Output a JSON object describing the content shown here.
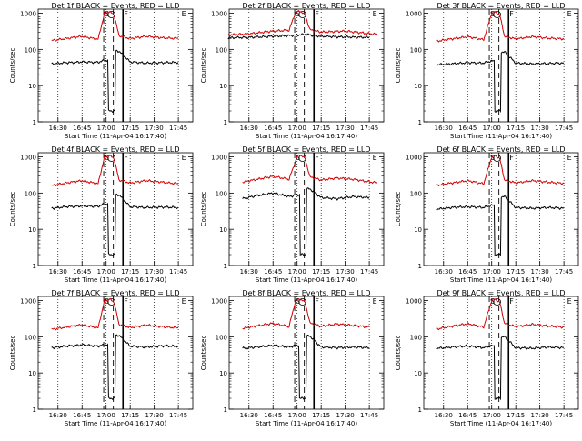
{
  "colors": {
    "events": "#000000",
    "lld": "#d00000",
    "axis": "#000000",
    "background": "#ffffff"
  },
  "chart_data": [
    {
      "type": "line",
      "title": "Det 1f BLACK = Events, RED = LLD",
      "ylabel": "Counts/sec",
      "xlabel": "Start Time (11-Apr-04 16:17:40)",
      "x_ticks": [
        "16:30",
        "16:45",
        "17:00",
        "17:15",
        "17:30",
        "17:45"
      ],
      "y_ticks": [
        "1",
        "10",
        "100",
        "1000"
      ],
      "y_scale": "log",
      "ylim": [
        1,
        1300
      ],
      "xlim": [
        "16:17:40",
        "17:54:00"
      ],
      "markers": [
        "S",
        "F",
        "E"
      ],
      "series": [
        {
          "key": "events",
          "x": [
            "16:26",
            "16:35",
            "16:45",
            "16:55",
            "16:59",
            "17:04",
            "17:08",
            "17:15",
            "17:25",
            "17:35",
            "17:45"
          ],
          "y": [
            40,
            43,
            45,
            44,
            50,
            0,
            90,
            45,
            42,
            43,
            44
          ]
        },
        {
          "key": "lld",
          "x": [
            "16:26",
            "16:35",
            "16:45",
            "16:55",
            "16:59",
            "17:02",
            "17:05",
            "17:08",
            "17:15",
            "17:25",
            "17:35",
            "17:45"
          ],
          "y": [
            175,
            200,
            230,
            190,
            1000,
            1100,
            900,
            240,
            200,
            230,
            210,
            200
          ]
        }
      ]
    },
    {
      "type": "line",
      "title": "Det 2f BLACK = Events, RED = LLD",
      "ylabel": "Counts/sec",
      "xlabel": "Start Time (11-Apr-04 16:17:40)",
      "x_ticks": [
        "16:30",
        "16:45",
        "17:00",
        "17:15",
        "17:30",
        "17:45"
      ],
      "y_ticks": [
        "1",
        "10",
        "100",
        "1000"
      ],
      "y_scale": "log",
      "ylim": [
        1,
        1300
      ],
      "xlim": [
        "16:17:40",
        "17:54:00"
      ],
      "markers": [
        "S",
        "F",
        "E"
      ],
      "series": [
        {
          "key": "events",
          "x": [
            "16:17",
            "16:30",
            "16:45",
            "16:55",
            "17:00",
            "17:05",
            "17:15",
            "17:30",
            "17:45"
          ],
          "y": [
            210,
            215,
            230,
            240,
            250,
            260,
            230,
            220,
            215
          ]
        },
        {
          "key": "lld",
          "x": [
            "16:17",
            "16:30",
            "16:45",
            "16:55",
            "16:59",
            "17:02",
            "17:05",
            "17:08",
            "17:15",
            "17:30",
            "17:50"
          ],
          "y": [
            250,
            270,
            320,
            340,
            1050,
            1150,
            900,
            350,
            300,
            320,
            260
          ]
        }
      ]
    },
    {
      "type": "line",
      "title": "Det 3f BLACK = Events, RED = LLD",
      "ylabel": "Counts/sec",
      "xlabel": "Start Time (11-Apr-04 16:17:40)",
      "x_ticks": [
        "16:30",
        "16:45",
        "17:00",
        "17:15",
        "17:30",
        "17:45"
      ],
      "y_ticks": [
        "1",
        "10",
        "100",
        "1000"
      ],
      "y_scale": "log",
      "ylim": [
        1,
        1300
      ],
      "xlim": [
        "16:17:40",
        "17:54:00"
      ],
      "markers": [
        "S",
        "F",
        "E"
      ],
      "series": [
        {
          "key": "events",
          "x": [
            "16:26",
            "16:35",
            "16:45",
            "16:55",
            "17:00",
            "17:04",
            "17:08",
            "17:15",
            "17:25",
            "17:35",
            "17:45"
          ],
          "y": [
            38,
            40,
            43,
            42,
            48,
            0,
            85,
            42,
            40,
            41,
            42
          ]
        },
        {
          "key": "lld",
          "x": [
            "16:26",
            "16:35",
            "16:45",
            "16:55",
            "17:00",
            "17:02",
            "17:05",
            "17:08",
            "17:15",
            "17:25",
            "17:35",
            "17:45"
          ],
          "y": [
            170,
            195,
            225,
            185,
            1000,
            1100,
            900,
            230,
            195,
            225,
            205,
            195
          ]
        }
      ]
    },
    {
      "type": "line",
      "title": "Det 4f BLACK = Events, RED = LLD",
      "ylabel": "Counts/sec",
      "xlabel": "Start Time (11-Apr-04 16:17:40)",
      "x_ticks": [
        "16:30",
        "16:45",
        "17:00",
        "17:15",
        "17:30",
        "17:45"
      ],
      "y_ticks": [
        "1",
        "10",
        "100",
        "1000"
      ],
      "y_scale": "log",
      "ylim": [
        1,
        1300
      ],
      "xlim": [
        "16:17:40",
        "17:54:00"
      ],
      "markers": [
        "S",
        "F",
        "E"
      ],
      "series": [
        {
          "key": "events",
          "x": [
            "16:26",
            "16:35",
            "16:45",
            "16:55",
            "16:59",
            "17:04",
            "17:08",
            "17:15",
            "17:25",
            "17:35",
            "17:45"
          ],
          "y": [
            38,
            42,
            44,
            43,
            50,
            0,
            90,
            42,
            40,
            41,
            40
          ]
        },
        {
          "key": "lld",
          "x": [
            "16:26",
            "16:35",
            "16:45",
            "16:55",
            "16:59",
            "17:02",
            "17:05",
            "17:08",
            "17:15",
            "17:25",
            "17:35",
            "17:45"
          ],
          "y": [
            160,
            190,
            220,
            180,
            1000,
            1100,
            900,
            230,
            190,
            220,
            200,
            180
          ]
        }
      ]
    },
    {
      "type": "line",
      "title": "Det 5f BLACK = Events, RED = LLD",
      "ylabel": "Counts/sec",
      "xlabel": "Start Time (11-Apr-04 16:17:40)",
      "x_ticks": [
        "16:30",
        "16:45",
        "17:00",
        "17:15",
        "17:30",
        "17:45"
      ],
      "y_ticks": [
        "1",
        "10",
        "100",
        "1000"
      ],
      "y_scale": "log",
      "ylim": [
        1,
        1300
      ],
      "xlim": [
        "16:17:40",
        "17:54:00"
      ],
      "markers": [
        "S",
        "F",
        "E"
      ],
      "series": [
        {
          "key": "events",
          "x": [
            "16:26",
            "16:35",
            "16:45",
            "16:55",
            "17:00",
            "17:04",
            "17:08",
            "17:15",
            "17:25",
            "17:35",
            "17:45"
          ],
          "y": [
            70,
            85,
            100,
            80,
            90,
            0,
            130,
            75,
            70,
            80,
            75
          ]
        },
        {
          "key": "lld",
          "x": [
            "16:26",
            "16:35",
            "16:45",
            "16:55",
            "17:00",
            "17:02",
            "17:05",
            "17:08",
            "17:15",
            "17:25",
            "17:35",
            "17:50"
          ],
          "y": [
            200,
            240,
            290,
            240,
            1000,
            1150,
            900,
            280,
            230,
            260,
            240,
            190
          ]
        }
      ]
    },
    {
      "type": "line",
      "title": "Det 6f BLACK = Events, RED = LLD",
      "ylabel": "Counts/sec",
      "xlabel": "Start Time (11-Apr-04 16:17:40)",
      "x_ticks": [
        "16:30",
        "16:45",
        "17:00",
        "17:15",
        "17:30",
        "17:45"
      ],
      "y_ticks": [
        "1",
        "10",
        "100",
        "1000"
      ],
      "y_scale": "log",
      "ylim": [
        1,
        1300
      ],
      "xlim": [
        "16:17:40",
        "17:54:00"
      ],
      "markers": [
        "S",
        "F",
        "E"
      ],
      "series": [
        {
          "key": "events",
          "x": [
            "16:26",
            "16:35",
            "16:45",
            "16:55",
            "17:00",
            "17:04",
            "17:08",
            "17:15",
            "17:25",
            "17:35",
            "17:45"
          ],
          "y": [
            36,
            40,
            42,
            40,
            46,
            0,
            80,
            40,
            38,
            40,
            38
          ]
        },
        {
          "key": "lld",
          "x": [
            "16:26",
            "16:35",
            "16:45",
            "16:55",
            "17:00",
            "17:02",
            "17:05",
            "17:08",
            "17:15",
            "17:25",
            "17:35",
            "17:45"
          ],
          "y": [
            165,
            190,
            220,
            180,
            1000,
            1100,
            900,
            230,
            190,
            220,
            200,
            185
          ]
        }
      ]
    },
    {
      "type": "line",
      "title": "Det 7f BLACK = Events, RED = LLD",
      "ylabel": "Counts/sec",
      "xlabel": "Start Time (11-Apr-04 16:17:40)",
      "x_ticks": [
        "16:30",
        "16:45",
        "17:00",
        "17:15",
        "17:30",
        "17:45"
      ],
      "y_ticks": [
        "1",
        "10",
        "100",
        "1000"
      ],
      "y_scale": "log",
      "ylim": [
        1,
        1300
      ],
      "xlim": [
        "16:17:40",
        "17:54:00"
      ],
      "markers": [
        "S",
        "F",
        "E"
      ],
      "series": [
        {
          "key": "events",
          "x": [
            "16:26",
            "16:35",
            "16:45",
            "16:55",
            "16:59",
            "17:04",
            "17:08",
            "17:15",
            "17:25",
            "17:35",
            "17:45"
          ],
          "y": [
            50,
            55,
            60,
            55,
            60,
            0,
            110,
            55,
            52,
            56,
            55
          ]
        },
        {
          "key": "lld",
          "x": [
            "16:26",
            "16:35",
            "16:45",
            "16:55",
            "16:59",
            "17:02",
            "17:05",
            "17:08",
            "17:15",
            "17:25",
            "17:35",
            "17:45"
          ],
          "y": [
            160,
            185,
            215,
            175,
            1000,
            1100,
            900,
            220,
            180,
            210,
            190,
            175
          ]
        }
      ]
    },
    {
      "type": "line",
      "title": "Det 8f BLACK = Events, RED = LLD",
      "ylabel": "Counts/sec",
      "xlabel": "Start Time (11-Apr-04 16:17:40)",
      "x_ticks": [
        "16:30",
        "16:45",
        "17:00",
        "17:15",
        "17:30",
        "17:45"
      ],
      "y_ticks": [
        "1",
        "10",
        "100",
        "1000"
      ],
      "y_scale": "log",
      "ylim": [
        1,
        1300
      ],
      "xlim": [
        "16:17:40",
        "17:54:00"
      ],
      "markers": [
        "S",
        "F",
        "E"
      ],
      "series": [
        {
          "key": "events",
          "x": [
            "16:26",
            "16:35",
            "16:45",
            "16:55",
            "16:59",
            "17:04",
            "17:08",
            "17:15",
            "17:25",
            "17:35",
            "17:45"
          ],
          "y": [
            48,
            52,
            58,
            52,
            58,
            0,
            105,
            52,
            50,
            52,
            50
          ]
        },
        {
          "key": "lld",
          "x": [
            "16:26",
            "16:35",
            "16:45",
            "16:55",
            "16:59",
            "17:02",
            "17:05",
            "17:08",
            "17:15",
            "17:25",
            "17:35",
            "17:45"
          ],
          "y": [
            170,
            200,
            235,
            190,
            1000,
            1100,
            900,
            240,
            195,
            225,
            205,
            185
          ]
        }
      ]
    },
    {
      "type": "line",
      "title": "Det 9f BLACK = Events, RED = LLD",
      "ylabel": "Counts/sec",
      "xlabel": "Start Time (11-Apr-04 16:17:40)",
      "x_ticks": [
        "16:30",
        "16:45",
        "17:00",
        "17:15",
        "17:30",
        "17:45"
      ],
      "y_ticks": [
        "1",
        "10",
        "100",
        "1000"
      ],
      "y_scale": "log",
      "ylim": [
        1,
        1300
      ],
      "xlim": [
        "16:17:40",
        "17:54:00"
      ],
      "markers": [
        "S",
        "F",
        "E"
      ],
      "series": [
        {
          "key": "events",
          "x": [
            "16:26",
            "16:35",
            "16:45",
            "16:55",
            "17:00",
            "17:04",
            "17:08",
            "17:15",
            "17:25",
            "17:35",
            "17:45"
          ],
          "y": [
            48,
            52,
            56,
            50,
            56,
            0,
            100,
            50,
            48,
            52,
            50
          ]
        },
        {
          "key": "lld",
          "x": [
            "16:26",
            "16:35",
            "16:45",
            "16:55",
            "17:00",
            "17:02",
            "17:05",
            "17:08",
            "17:15",
            "17:25",
            "17:35",
            "17:45"
          ],
          "y": [
            165,
            195,
            230,
            185,
            1000,
            1100,
            900,
            235,
            190,
            220,
            200,
            185
          ]
        }
      ]
    }
  ]
}
